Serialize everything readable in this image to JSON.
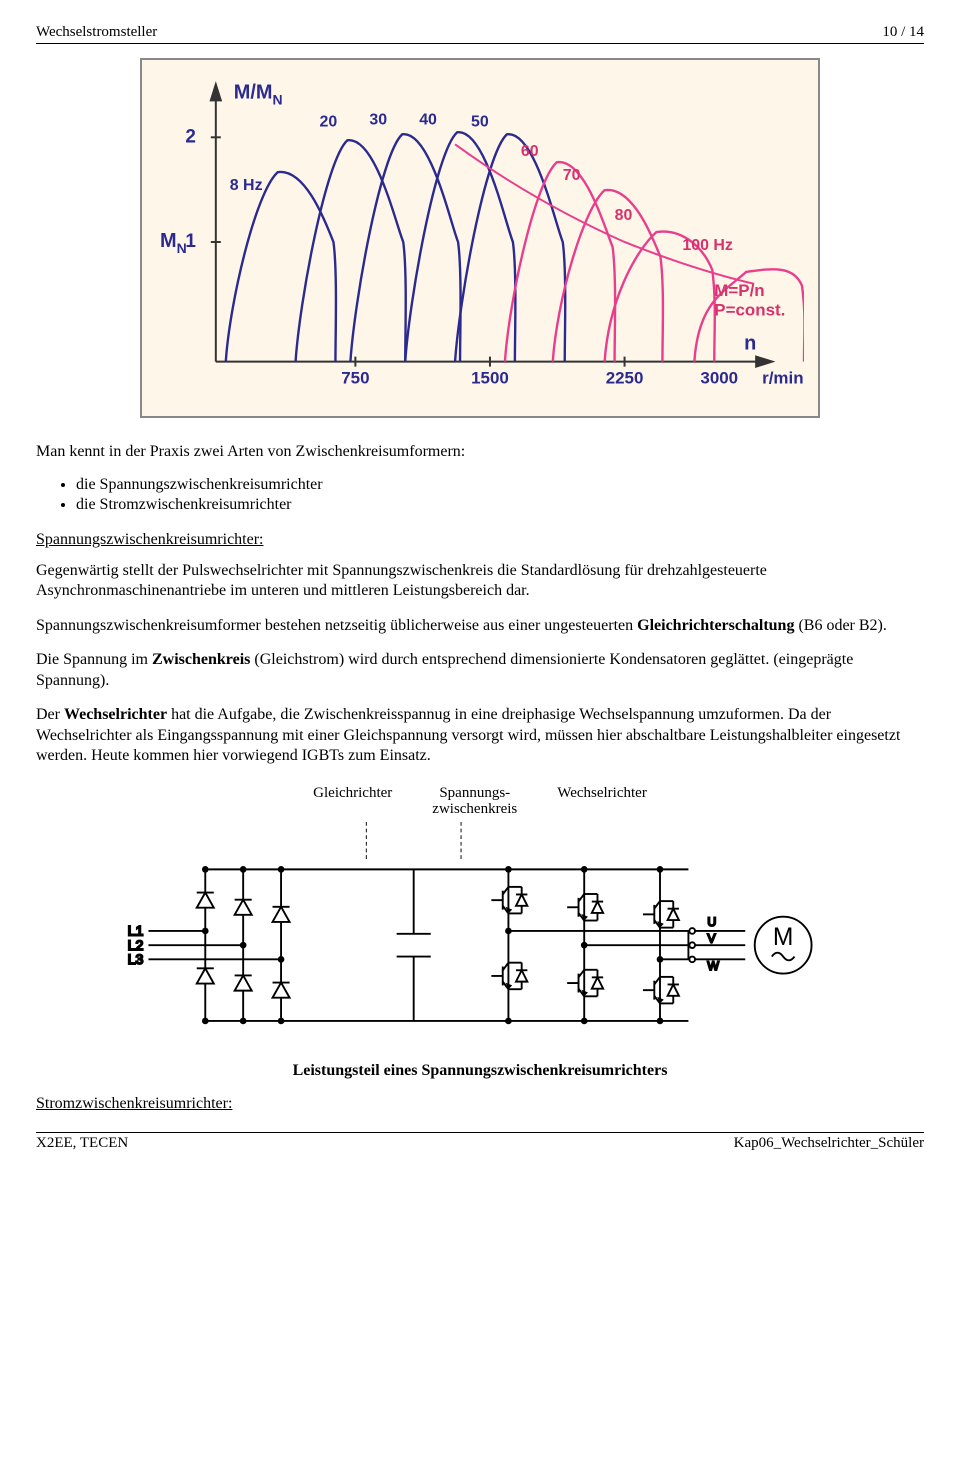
{
  "header": {
    "left": "Wechselstromsteller",
    "right": "10 / 14"
  },
  "footer": {
    "left": "X2EE, TECEN",
    "right": "Kap06_Wechselrichter_Schüler"
  },
  "chart": {
    "type": "line",
    "bg": "#fff6ea",
    "border": "#888888",
    "axis_color": "#333",
    "y_label": "M/M",
    "y_label_sub": "N",
    "y_side_label": "M",
    "y_side_sub": "N",
    "x_label": "r/min",
    "x_final_label": "n",
    "x_ticks": [
      750,
      1500,
      2250,
      3000
    ],
    "y_ticks": [
      1,
      2
    ],
    "curve_labels": [
      "8 Hz",
      "20",
      "30",
      "40",
      "50",
      "60",
      "70",
      "80",
      "100 Hz"
    ],
    "curve_colors": [
      "#2a2a8f",
      "#2a2a8f",
      "#2a2a8f",
      "#2a2a8f",
      "#2a2a8f",
      "#e83e8c",
      "#e83e8c",
      "#e83e8c",
      "#e83e8c"
    ],
    "annotation1": "M=P/n",
    "annotation2": "P=const.",
    "annotation_color": "#d6336c",
    "curves": [
      {
        "peakx": 70,
        "color": "#2a2a8f"
      },
      {
        "peakx": 140,
        "color": "#2a2a8f"
      },
      {
        "peakx": 195,
        "color": "#2a2a8f"
      },
      {
        "peakx": 250,
        "color": "#2a2a8f"
      },
      {
        "peakx": 300,
        "color": "#2a2a8f"
      },
      {
        "peakx": 350,
        "color": "#e83e8c"
      },
      {
        "peakx": 398,
        "color": "#e83e8c"
      },
      {
        "peakx": 450,
        "color": "#e83e8c"
      },
      {
        "peakx": 540,
        "color": "#e83e8c"
      }
    ],
    "envelope_color": "#e83e8c"
  },
  "text": {
    "intro": "Man kennt in der Praxis zwei Arten von Zwischenkreisumformern:",
    "bullets": [
      "die Spannungszwischenkreisumrichter",
      "die Stromzwischenkreisumrichter"
    ],
    "sec1_title": "Spannungszwischenkreisumrichter:",
    "p1": "Gegenwärtig stellt der Pulswechselrichter mit Spannungszwischenkreis die Standardlösung für drehzahlgesteuerte Asynchronmaschinenantriebe im unteren und mittleren Leistungsbereich dar.",
    "p2_a": "Spannungszwischenkreisumformer bestehen netzseitig üblicherweise aus einer ungesteuerten ",
    "p2_b": "Gleichrichterschaltung",
    "p2_c": " (B6 oder B2).",
    "p3_a": "Die Spannung im ",
    "p3_b": "Zwischenkreis",
    "p3_c": " (Gleichstrom) wird durch entsprechend dimensionierte Kondensatoren geglättet. (eingeprägte Spannung).",
    "p4_a": "Der ",
    "p4_b": "Wechselrichter",
    "p4_c": " hat die Aufgabe, die Zwischenkreisspannug in eine dreiphasige Wechselspannung umzuformen. Da der Wechselrichter als Eingangsspannung mit einer Gleichspannung versorgt wird, müssen hier abschaltbare Leistungshalbleiter eingesetzt werden. Heute kommen hier vorwiegend IGBTs zum Einsatz.",
    "labels": {
      "gl": "Gleichrichter",
      "sz1": "Spannungs-",
      "sz2": "zwischenkreis",
      "wr": "Wechselrichter"
    },
    "circuit_caption": "Leistungsteil eines Spannungszwischenkreisumrichters",
    "sec2_title": "Stromzwischenkreisumrichter:"
  },
  "circuit": {
    "type": "diagram",
    "stroke": "#000",
    "stroke_width": 2,
    "L_labels": [
      "L1",
      "L2",
      "L3"
    ],
    "motor_labels": [
      "U",
      "V",
      "W"
    ],
    "motor_symbol": "M"
  }
}
